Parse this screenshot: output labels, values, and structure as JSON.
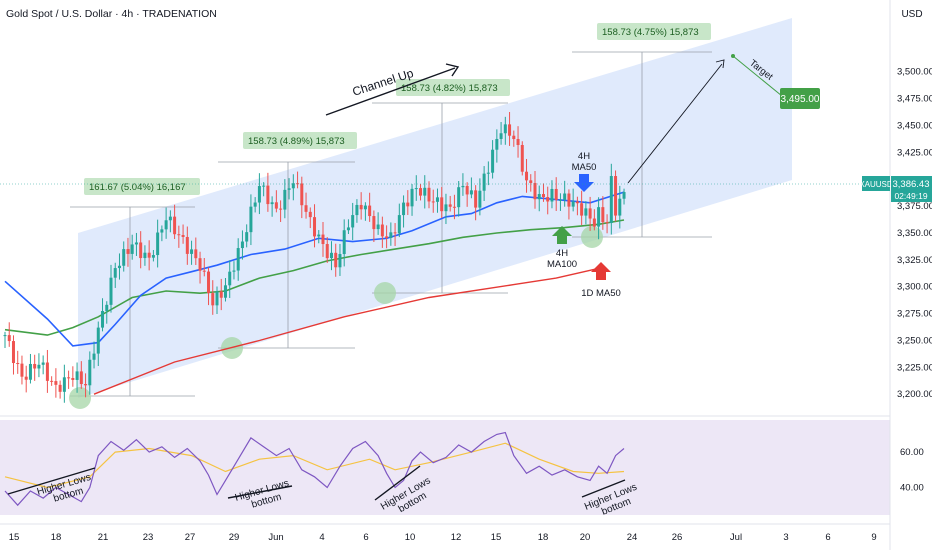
{
  "header": {
    "title": "Gold Spot / U.S. Dollar · 4h · TRADENATION"
  },
  "currency": "USD",
  "colors": {
    "bull": "#26a69a",
    "bear": "#ef5350",
    "ma50_4h": "#2962ff",
    "ma100_4h": "#43a047",
    "ma50_1d": "#e53935",
    "channel": "#dbe6fb",
    "rsi_band": "#ede7f6",
    "rsi": "#7e57c2",
    "rsi_ma": "#f5c342",
    "label_green": "#43a047",
    "price_tag": "#26a69a",
    "circle": "#a5d6a7"
  },
  "chart_data": {
    "type": "candlestick",
    "symbol": "XAUUSD",
    "timeframe": "4h",
    "x_ticks": [
      "15",
      "18",
      "21",
      "23",
      "27",
      "29",
      "Jun",
      "4",
      "6",
      "10",
      "12",
      "15",
      "18",
      "20",
      "24",
      "26",
      "Jul",
      "3",
      "6",
      "9"
    ],
    "y_ticks": [
      "3,500.00",
      "3,475.00",
      "3,450.00",
      "3,425.00",
      "3,400.00",
      "3,375.00",
      "3,350.00",
      "3,325.00",
      "3,300.00",
      "3,275.00",
      "3,250.00",
      "3,225.00",
      "3,200.00"
    ],
    "ylim": [
      3190,
      3522
    ],
    "price_path": [
      [
        0,
        3255
      ],
      [
        4,
        3215
      ],
      [
        8,
        3230
      ],
      [
        12,
        3205
      ],
      [
        16,
        3218
      ],
      [
        19,
        3210
      ],
      [
        22,
        3260
      ],
      [
        26,
        3318
      ],
      [
        30,
        3340
      ],
      [
        34,
        3325
      ],
      [
        38,
        3365
      ],
      [
        42,
        3342
      ],
      [
        46,
        3320
      ],
      [
        49,
        3285
      ],
      [
        52,
        3300
      ],
      [
        56,
        3342
      ],
      [
        60,
        3395
      ],
      [
        64,
        3370
      ],
      [
        68,
        3400
      ],
      [
        72,
        3360
      ],
      [
        75,
        3338
      ],
      [
        78,
        3320
      ],
      [
        81,
        3360
      ],
      [
        84,
        3378
      ],
      [
        88,
        3352
      ],
      [
        91,
        3345
      ],
      [
        94,
        3375
      ],
      [
        97,
        3392
      ],
      [
        101,
        3380
      ],
      [
        105,
        3372
      ],
      [
        108,
        3395
      ],
      [
        111,
        3378
      ],
      [
        114,
        3412
      ],
      [
        117,
        3448
      ],
      [
        120,
        3440
      ],
      [
        123,
        3398
      ],
      [
        126,
        3382
      ],
      [
        129,
        3385
      ],
      [
        133,
        3380
      ],
      [
        136,
        3372
      ],
      [
        139,
        3360
      ],
      [
        140,
        3368
      ],
      [
        142,
        3360
      ],
      [
        143,
        3398
      ],
      [
        144,
        3372
      ],
      [
        146,
        3386
      ]
    ],
    "ma50_4h": [
      [
        0,
        3305
      ],
      [
        10,
        3270
      ],
      [
        16,
        3245
      ],
      [
        22,
        3248
      ],
      [
        26,
        3265
      ],
      [
        32,
        3292
      ],
      [
        38,
        3308
      ],
      [
        44,
        3314
      ],
      [
        50,
        3320
      ],
      [
        58,
        3330
      ],
      [
        66,
        3335
      ],
      [
        74,
        3345
      ],
      [
        82,
        3342
      ],
      [
        90,
        3345
      ],
      [
        96,
        3352
      ],
      [
        104,
        3365
      ],
      [
        110,
        3368
      ],
      [
        116,
        3378
      ],
      [
        122,
        3384
      ],
      [
        130,
        3381
      ],
      [
        138,
        3378
      ],
      [
        146,
        3388
      ]
    ],
    "ma100_4h": [
      [
        0,
        3260
      ],
      [
        10,
        3255
      ],
      [
        16,
        3262
      ],
      [
        22,
        3272
      ],
      [
        30,
        3290
      ],
      [
        38,
        3296
      ],
      [
        46,
        3294
      ],
      [
        52,
        3296
      ],
      [
        60,
        3308
      ],
      [
        68,
        3315
      ],
      [
        76,
        3324
      ],
      [
        84,
        3330
      ],
      [
        92,
        3335
      ],
      [
        100,
        3340
      ],
      [
        108,
        3346
      ],
      [
        116,
        3350
      ],
      [
        124,
        3353
      ],
      [
        132,
        3355
      ],
      [
        140,
        3358
      ],
      [
        146,
        3362
      ]
    ],
    "ma50_1d": [
      [
        21,
        3200
      ],
      [
        40,
        3230
      ],
      [
        60,
        3250
      ],
      [
        80,
        3272
      ],
      [
        100,
        3290
      ],
      [
        120,
        3302
      ],
      [
        130,
        3308
      ],
      [
        141,
        3318
      ]
    ],
    "rsi_ticks": [
      "60.00",
      "40.00"
    ],
    "rsi_ylim": [
      25,
      77
    ],
    "rsi_path": [
      [
        0,
        38
      ],
      [
        3,
        30
      ],
      [
        6,
        38
      ],
      [
        9,
        34
      ],
      [
        12,
        40
      ],
      [
        15,
        36
      ],
      [
        18,
        32
      ],
      [
        20,
        40
      ],
      [
        22,
        58
      ],
      [
        25,
        66
      ],
      [
        28,
        61
      ],
      [
        31,
        67
      ],
      [
        34,
        60
      ],
      [
        37,
        63
      ],
      [
        40,
        57
      ],
      [
        43,
        62
      ],
      [
        46,
        55
      ],
      [
        48,
        47
      ],
      [
        50,
        36
      ],
      [
        52,
        44
      ],
      [
        55,
        56
      ],
      [
        58,
        68
      ],
      [
        61,
        63
      ],
      [
        64,
        58
      ],
      [
        67,
        62
      ],
      [
        70,
        50
      ],
      [
        73,
        46
      ],
      [
        76,
        40
      ],
      [
        79,
        52
      ],
      [
        82,
        62
      ],
      [
        85,
        66
      ],
      [
        88,
        58
      ],
      [
        90,
        48
      ],
      [
        92,
        40
      ],
      [
        94,
        44
      ],
      [
        96,
        55
      ],
      [
        98,
        60
      ],
      [
        101,
        54
      ],
      [
        104,
        57
      ],
      [
        107,
        64
      ],
      [
        110,
        60
      ],
      [
        113,
        66
      ],
      [
        116,
        70
      ],
      [
        118,
        71
      ],
      [
        120,
        58
      ],
      [
        123,
        48
      ],
      [
        126,
        52
      ],
      [
        129,
        47
      ],
      [
        132,
        50
      ],
      [
        135,
        46
      ],
      [
        138,
        44
      ],
      [
        140,
        52
      ],
      [
        142,
        48
      ],
      [
        144,
        58
      ],
      [
        146,
        62
      ]
    ],
    "rsi_ma_path": [
      [
        0,
        46
      ],
      [
        10,
        40
      ],
      [
        20,
        46
      ],
      [
        26,
        60
      ],
      [
        34,
        62
      ],
      [
        44,
        58
      ],
      [
        52,
        49
      ],
      [
        60,
        56
      ],
      [
        68,
        58
      ],
      [
        76,
        50
      ],
      [
        86,
        56
      ],
      [
        92,
        50
      ],
      [
        100,
        54
      ],
      [
        110,
        60
      ],
      [
        118,
        65
      ],
      [
        126,
        56
      ],
      [
        134,
        49
      ],
      [
        140,
        48
      ],
      [
        146,
        49
      ]
    ]
  },
  "price_labels": {
    "current_symbol": "XAUUSD",
    "current_price": "3,386.43",
    "countdown": "02:49:19",
    "target_price": "3,495.00"
  },
  "annotations": {
    "channel_up": "Channel Up",
    "target": "Target",
    "measure_1": "161.67 (5.04%) 16,167",
    "measure_2": "158.73 (4.89%) 15,873",
    "measure_3": "158.73 (4.82%) 15,873",
    "measure_4": "158.73 (4.75%) 15,873",
    "ma50_4h_label_1": "4H",
    "ma50_4h_label_2": "MA50",
    "ma100_4h_label_1": "4H",
    "ma100_4h_label_2": "MA100",
    "ma50_1d_label": "1D MA50",
    "higher_lows_1": "Higher Lows",
    "higher_lows_2": "bottom"
  }
}
